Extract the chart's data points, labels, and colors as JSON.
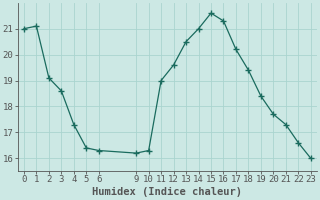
{
  "x": [
    0,
    1,
    2,
    3,
    4,
    5,
    6,
    9,
    10,
    11,
    12,
    13,
    14,
    15,
    16,
    17,
    18,
    19,
    20,
    21,
    22,
    23
  ],
  "y": [
    21.0,
    21.1,
    19.1,
    18.6,
    17.3,
    16.4,
    16.3,
    16.2,
    16.3,
    19.0,
    19.6,
    20.5,
    21.0,
    21.6,
    21.3,
    20.2,
    19.4,
    18.4,
    17.7,
    17.3,
    16.6,
    16.0
  ],
  "line_color": "#1a6b5e",
  "marker": "+",
  "marker_size": 4,
  "background_color": "#cce8e4",
  "grid_color": "#aad4cf",
  "xlabel": "Humidex (Indice chaleur)",
  "xlabel_fontsize": 7.5,
  "ylim": [
    15.5,
    22.0
  ],
  "xlim": [
    -0.5,
    23.5
  ],
  "yticks": [
    16,
    17,
    18,
    19,
    20,
    21
  ],
  "xticks": [
    0,
    1,
    2,
    3,
    4,
    5,
    6,
    9,
    10,
    11,
    12,
    13,
    14,
    15,
    16,
    17,
    18,
    19,
    20,
    21,
    22,
    23
  ],
  "tick_fontsize": 6.5,
  "spine_color": "#555555"
}
